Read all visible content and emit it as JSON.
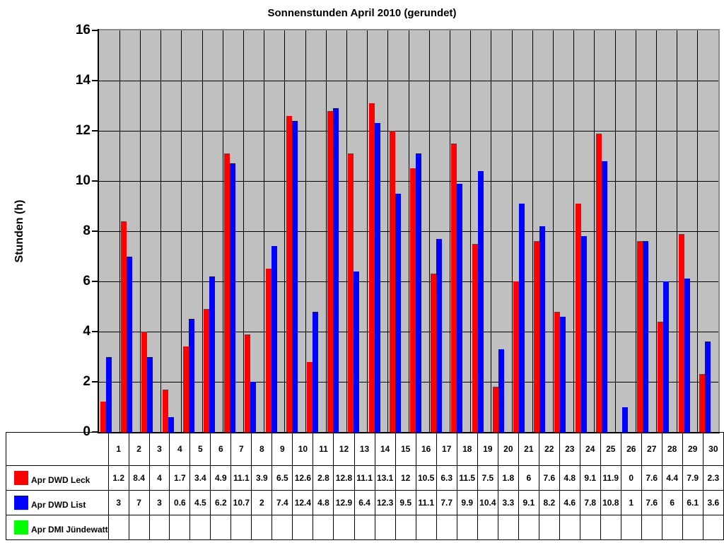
{
  "chart_data": {
    "type": "bar",
    "title": "Sonnenstunden April 2010 (gerundet)",
    "xlabel": "",
    "ylabel": "Stunden (h)",
    "ylim": [
      0,
      16
    ],
    "ytick_step": 2,
    "grid": true,
    "plot_background": "#c0c0c0",
    "gridline_color": "#000000",
    "legend_position": "table-left",
    "categories": [
      1,
      2,
      3,
      4,
      5,
      6,
      7,
      8,
      9,
      10,
      11,
      12,
      13,
      14,
      15,
      16,
      17,
      18,
      19,
      20,
      21,
      22,
      23,
      24,
      25,
      26,
      27,
      28,
      29,
      30
    ],
    "series": [
      {
        "name": "Apr DWD Leck",
        "color": "#ff0000",
        "values": [
          1.2,
          8.4,
          4,
          1.7,
          3.4,
          4.9,
          11.1,
          3.9,
          6.5,
          12.6,
          2.8,
          12.8,
          11.1,
          13.1,
          12,
          10.5,
          6.3,
          11.5,
          7.5,
          1.8,
          6,
          7.6,
          4.8,
          9.1,
          11.9,
          0,
          7.6,
          4.4,
          7.9,
          2.3
        ]
      },
      {
        "name": "Apr DWD List",
        "color": "#0000ff",
        "values": [
          3,
          7,
          3,
          0.6,
          4.5,
          6.2,
          10.7,
          2,
          7.4,
          12.4,
          4.8,
          12.9,
          6.4,
          12.3,
          9.5,
          11.1,
          7.7,
          9.9,
          10.4,
          3.3,
          9.1,
          8.2,
          4.6,
          7.8,
          10.8,
          1,
          7.6,
          6,
          6.1,
          3.6
        ]
      },
      {
        "name": "Apr DMI Jündewatt",
        "color": "#00ff00",
        "values": [
          null,
          null,
          null,
          null,
          null,
          null,
          null,
          null,
          null,
          null,
          null,
          null,
          null,
          null,
          null,
          null,
          null,
          null,
          null,
          null,
          null,
          null,
          null,
          null,
          null,
          null,
          null,
          null,
          null,
          null
        ]
      }
    ]
  }
}
